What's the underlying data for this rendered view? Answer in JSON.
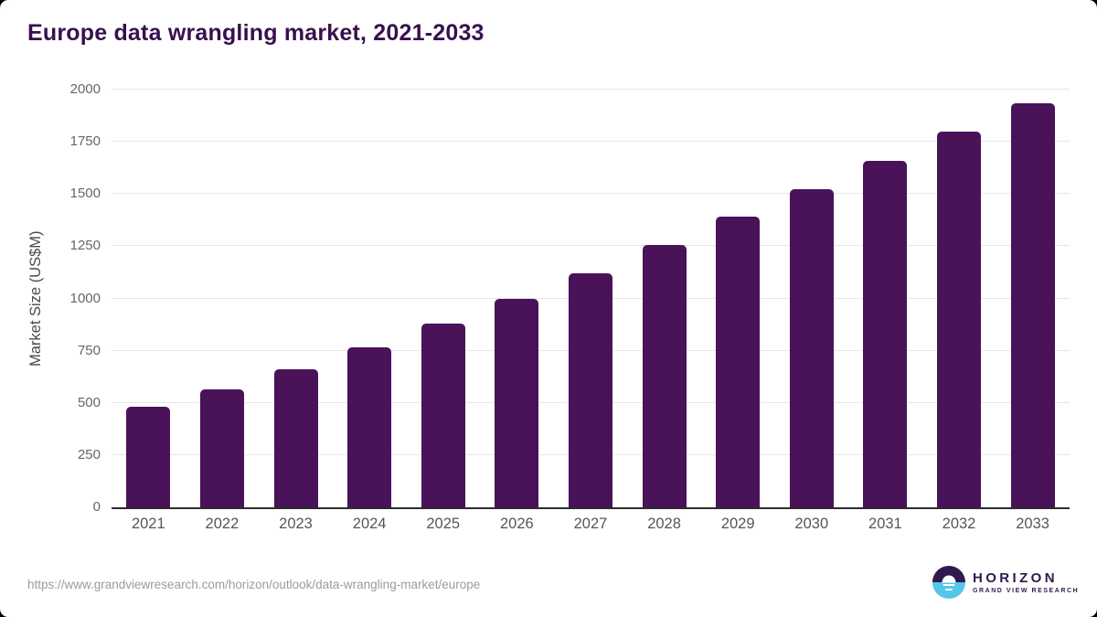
{
  "title": "Europe data wrangling market, 2021-2033",
  "source_url": "https://www.grandviewresearch.com/horizon/outlook/data-wrangling-market/europe",
  "logo": {
    "name": "HORIZON",
    "subtitle": "GRAND VIEW RESEARCH"
  },
  "colors": {
    "bar": "#4a1258",
    "title_text": "#38104e",
    "gridline": "#e7e7e7",
    "axis_line": "#2d2d2d",
    "y_tick_label": "#666666",
    "x_tick_label": "#565656",
    "y_axis_title": "#4a4a4a",
    "source_url_text": "#9c9c9c",
    "logo_purple": "#2f1a4d",
    "logo_blue": "#56c5ea"
  },
  "chart_data": {
    "type": "bar",
    "title": "Europe data wrangling market, 2021-2033",
    "categories": [
      "2021",
      "2022",
      "2023",
      "2024",
      "2025",
      "2026",
      "2027",
      "2028",
      "2029",
      "2030",
      "2031",
      "2032",
      "2033"
    ],
    "values": [
      480,
      565,
      660,
      768,
      880,
      1000,
      1120,
      1255,
      1390,
      1525,
      1660,
      1800,
      1935
    ],
    "xlabel": "",
    "ylabel": "Market Size (US$M)",
    "ylim": [
      0,
      2000
    ],
    "yticks": [
      0,
      250,
      500,
      750,
      1000,
      1250,
      1500,
      1750,
      2000
    ],
    "grid": "horizontal",
    "legend": "none",
    "bar_color": "#4a1258"
  }
}
